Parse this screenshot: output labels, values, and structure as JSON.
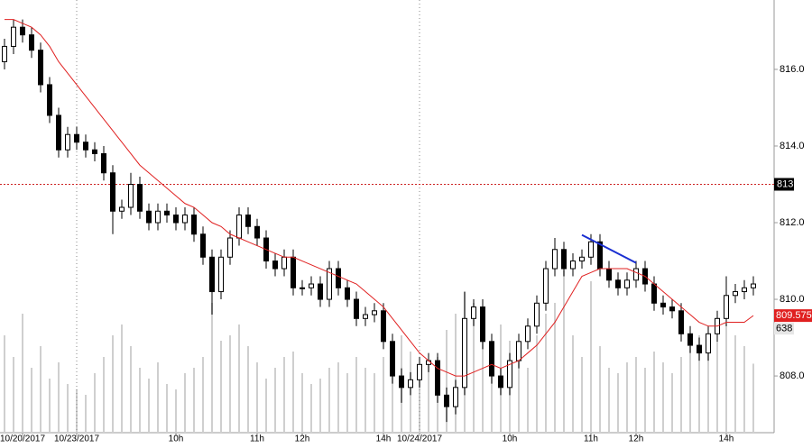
{
  "chart_data": {
    "type": "candlestick",
    "categories": [
      null,
      null,
      "10/20/2017",
      null,
      null,
      null,
      null,
      null,
      "10/23/2017",
      null,
      null,
      null,
      null,
      null,
      null,
      null,
      null,
      null,
      null,
      "10h",
      null,
      null,
      null,
      null,
      null,
      null,
      null,
      null,
      "11h",
      null,
      null,
      null,
      null,
      "12h",
      null,
      null,
      null,
      null,
      null,
      null,
      null,
      null,
      "14h",
      null,
      null,
      null,
      "10/24/2017",
      null,
      null,
      null,
      null,
      null,
      null,
      null,
      null,
      null,
      "10h",
      null,
      null,
      null,
      null,
      null,
      null,
      null,
      null,
      "11h",
      null,
      null,
      null,
      null,
      "12h",
      null,
      null,
      null,
      null,
      null,
      null,
      null,
      null,
      null,
      "14h",
      null,
      null,
      null
    ],
    "open": [
      816.2,
      816.6,
      817.1,
      816.9,
      816.5,
      815.6,
      814.8,
      813.9,
      814.3,
      814.1,
      813.9,
      813.8,
      813.3,
      812.3,
      812.4,
      813.0,
      812.3,
      812.0,
      812.3,
      812.2,
      812.0,
      812.2,
      811.7,
      811.1,
      810.2,
      811.1,
      811.6,
      812.2,
      811.9,
      811.6,
      811.0,
      810.8,
      811.1,
      810.3,
      810.3,
      810.4,
      810.0,
      810.8,
      810.3,
      810.0,
      809.5,
      809.6,
      809.7,
      808.9,
      808.0,
      807.7,
      807.9,
      808.3,
      808.4,
      807.5,
      807.2,
      807.7,
      809.5,
      809.8,
      808.9,
      808.0,
      807.7,
      808.4,
      808.9,
      809.3,
      809.9,
      810.8,
      811.3,
      810.8,
      811.0,
      811.1,
      811.5,
      810.8,
      810.5,
      810.3,
      810.5,
      810.8,
      810.4,
      809.9,
      809.8,
      809.7,
      809.1,
      808.8,
      808.6,
      809.1,
      809.5,
      810.1,
      810.2,
      810.3
    ],
    "high": [
      816.8,
      817.3,
      817.3,
      817.1,
      816.7,
      815.8,
      815.0,
      814.5,
      814.5,
      814.3,
      814.1,
      814.0,
      813.5,
      812.6,
      813.3,
      813.2,
      812.5,
      812.5,
      812.5,
      812.4,
      812.4,
      812.4,
      811.9,
      811.3,
      811.3,
      811.8,
      812.4,
      812.4,
      812.1,
      811.8,
      811.2,
      811.3,
      811.3,
      810.5,
      810.6,
      810.6,
      811.0,
      811.0,
      810.5,
      810.2,
      809.8,
      809.9,
      809.9,
      809.1,
      808.2,
      808.1,
      808.5,
      808.6,
      808.6,
      807.7,
      807.9,
      810.2,
      810.0,
      810.0,
      809.1,
      808.2,
      808.6,
      809.1,
      809.5,
      810.1,
      811.0,
      811.6,
      811.5,
      811.2,
      811.3,
      811.7,
      811.7,
      811.0,
      810.7,
      810.7,
      811.0,
      811.0,
      810.6,
      810.1,
      810.0,
      809.9,
      809.3,
      809.0,
      809.3,
      809.7,
      810.6,
      810.4,
      810.5,
      810.6
    ],
    "low": [
      816.0,
      816.4,
      816.7,
      816.3,
      815.4,
      814.6,
      813.7,
      813.7,
      813.9,
      813.7,
      813.6,
      813.1,
      811.7,
      812.1,
      812.2,
      812.1,
      811.8,
      811.8,
      812.0,
      811.8,
      811.8,
      811.5,
      810.9,
      809.6,
      810.0,
      810.9,
      811.4,
      811.7,
      811.4,
      810.8,
      810.6,
      810.6,
      810.1,
      810.1,
      810.1,
      809.8,
      809.8,
      810.1,
      809.8,
      809.3,
      809.3,
      809.4,
      808.7,
      807.8,
      807.3,
      807.5,
      807.7,
      808.1,
      807.3,
      806.8,
      807.0,
      807.5,
      809.3,
      808.7,
      807.8,
      807.5,
      807.5,
      808.2,
      808.7,
      809.1,
      809.7,
      810.6,
      810.6,
      810.6,
      810.8,
      810.9,
      810.6,
      810.3,
      810.1,
      810.1,
      810.3,
      810.2,
      809.7,
      809.6,
      809.5,
      808.9,
      808.6,
      808.4,
      808.4,
      808.9,
      809.3,
      809.9,
      810.0,
      810.1
    ],
    "close": [
      816.6,
      817.1,
      816.9,
      816.5,
      815.6,
      814.8,
      813.9,
      814.3,
      814.1,
      813.9,
      813.8,
      813.3,
      812.3,
      812.4,
      813.0,
      812.3,
      812.0,
      812.3,
      812.2,
      812.0,
      812.2,
      811.7,
      811.1,
      810.2,
      811.1,
      811.6,
      812.2,
      811.9,
      811.6,
      811.0,
      810.8,
      811.1,
      810.3,
      810.3,
      810.4,
      810.0,
      810.8,
      810.3,
      810.0,
      809.5,
      809.6,
      809.7,
      808.9,
      808.0,
      807.7,
      807.9,
      808.3,
      808.4,
      807.5,
      807.2,
      807.7,
      809.5,
      809.8,
      808.9,
      808.0,
      807.7,
      808.4,
      808.9,
      809.3,
      809.9,
      810.8,
      811.3,
      810.8,
      811.0,
      811.1,
      811.5,
      810.8,
      810.5,
      810.3,
      810.5,
      810.8,
      810.4,
      809.9,
      809.8,
      809.7,
      809.1,
      808.8,
      808.6,
      809.1,
      809.5,
      810.1,
      810.2,
      810.3,
      810.4
    ],
    "ma": [
      817.3,
      817.3,
      817.2,
      817.1,
      816.9,
      816.6,
      816.2,
      815.9,
      815.6,
      815.3,
      815.0,
      814.7,
      814.4,
      814.1,
      813.8,
      813.5,
      813.3,
      813.1,
      812.9,
      812.7,
      812.5,
      812.4,
      812.2,
      812.0,
      811.9,
      811.7,
      811.6,
      811.5,
      811.4,
      811.3,
      811.2,
      811.1,
      811.1,
      811.0,
      810.9,
      810.8,
      810.7,
      810.6,
      810.5,
      810.4,
      810.2,
      810.0,
      809.8,
      809.5,
      809.2,
      808.9,
      808.6,
      808.4,
      808.2,
      808.1,
      808.0,
      808.0,
      808.1,
      808.2,
      808.3,
      808.2,
      808.3,
      808.4,
      808.6,
      808.8,
      809.1,
      809.4,
      809.8,
      810.2,
      810.6,
      810.7,
      810.8,
      810.8,
      810.8,
      810.8,
      810.7,
      810.6,
      810.4,
      810.2,
      810.0,
      809.8,
      809.6,
      809.4,
      809.3,
      809.3,
      809.4,
      809.4,
      809.4,
      809.575
    ],
    "ma_color": "#e02020",
    "volumes": [
      900,
      700,
      1100,
      600,
      800,
      500,
      650,
      450,
      400,
      350,
      550,
      700,
      900,
      1000,
      800,
      600,
      500,
      650,
      450,
      400,
      550,
      600,
      700,
      1200,
      850,
      900,
      1000,
      800,
      650,
      500,
      600,
      700,
      750,
      550,
      450,
      500,
      600,
      650,
      550,
      700,
      600,
      550,
      700,
      800,
      900,
      750,
      600,
      650,
      700,
      950,
      1100,
      1300,
      1200,
      900,
      800,
      1000,
      850,
      700,
      600,
      900,
      1100,
      1200,
      1500,
      900,
      700,
      1400,
      800,
      600,
      550,
      650,
      700,
      600,
      750,
      650,
      550,
      700,
      800,
      900,
      750,
      850,
      1000,
      900,
      800,
      638
    ],
    "vlim": [
      0,
      4000
    ],
    "volume_color": "#cfcfcf",
    "hline": 813,
    "hline_color": "#cc2222",
    "trendline": {
      "x": [
        64,
        70
      ],
      "values": [
        811.68,
        810.95
      ],
      "color": "#1a2fd1"
    },
    "ylim": [
      806.52,
      817.81
    ],
    "yticks": [
      {
        "value": 808,
        "label": "808.0"
      },
      {
        "value": 810,
        "label": "810.0"
      },
      {
        "value": 812,
        "label": "812.0"
      },
      {
        "value": 814,
        "label": "814.0"
      },
      {
        "value": 816,
        "label": "816.0"
      }
    ]
  }
}
